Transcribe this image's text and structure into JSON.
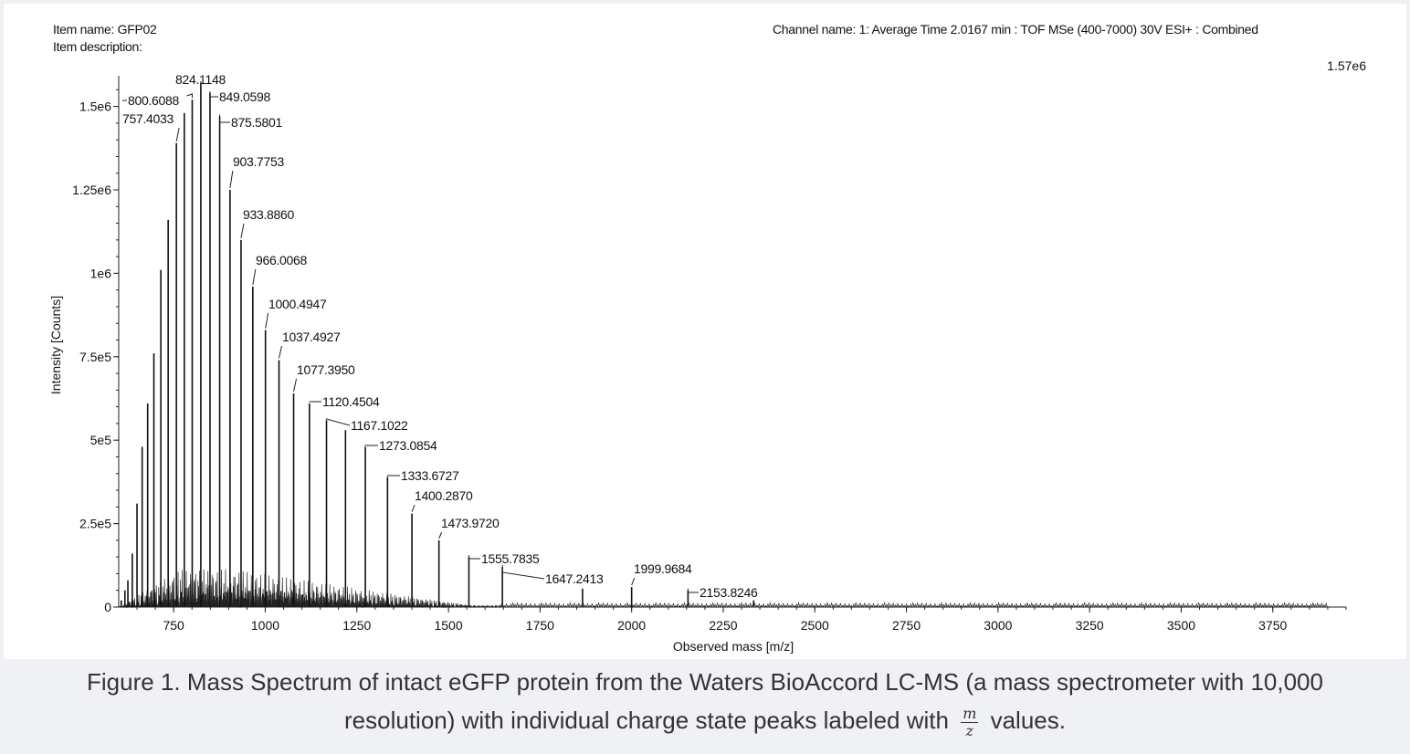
{
  "header": {
    "item_name": "Item name: GFP02",
    "item_description": "Item description:",
    "channel_name": "Channel name: 1: Average Time 2.0167 min : TOF MSe (400-7000) 30V ESI+ : Combined"
  },
  "caption": {
    "line1": "Figure 1. Mass Spectrum of intact eGFP protein from the Waters BioAccord LC-MS (a mass spectrometer with 10,000",
    "line2_before": "resolution) with individual charge state peaks labeled with",
    "frac_num": "m",
    "frac_den": "z",
    "line2_after": "values."
  },
  "chart_data": {
    "type": "line",
    "title": "",
    "xlabel": "Observed mass [m/z]",
    "ylabel": "Intensity [Counts]",
    "max_intensity_label": "1.57e6",
    "xlim": [
      600,
      3950
    ],
    "ylim": [
      0,
      1570000
    ],
    "x_ticks": [
      750,
      1000,
      1250,
      1500,
      1750,
      2000,
      2250,
      2500,
      2750,
      3000,
      3250,
      3500,
      3750
    ],
    "x_tick_labels": [
      "750",
      "1000",
      "1250",
      "1500",
      "1750",
      "2000",
      "2250",
      "2500",
      "2750",
      "3000",
      "3250",
      "3500",
      "3750"
    ],
    "y_ticks": [
      0,
      250000,
      500000,
      750000,
      1000000,
      1250000,
      1500000
    ],
    "y_tick_labels": [
      "0",
      "2.5e5",
      "5e5",
      "7.5e5",
      "1e6",
      "1.25e6",
      "1.5e6"
    ],
    "labeled_peaks": [
      {
        "label": "757.4033",
        "mz": 757.4,
        "intensity": 1390000
      },
      {
        "label": "800.6088",
        "mz": 800.6,
        "intensity": 1520000
      },
      {
        "label": "824.1148",
        "mz": 824.1,
        "intensity": 1570000
      },
      {
        "label": "849.0598",
        "mz": 849.1,
        "intensity": 1540000
      },
      {
        "label": "875.5801",
        "mz": 875.6,
        "intensity": 1470000
      },
      {
        "label": "903.7753",
        "mz": 903.8,
        "intensity": 1250000
      },
      {
        "label": "933.8860",
        "mz": 933.9,
        "intensity": 1100000
      },
      {
        "label": "966.0068",
        "mz": 966.0,
        "intensity": 960000
      },
      {
        "label": "1000.4947",
        "mz": 1000.5,
        "intensity": 830000
      },
      {
        "label": "1037.4927",
        "mz": 1037.5,
        "intensity": 740000
      },
      {
        "label": "1077.3950",
        "mz": 1077.4,
        "intensity": 640000
      },
      {
        "label": "1120.4504",
        "mz": 1120.5,
        "intensity": 610000
      },
      {
        "label": "1167.1022",
        "mz": 1167.1,
        "intensity": 560000
      },
      {
        "label": "1273.0854",
        "mz": 1273.1,
        "intensity": 480000
      },
      {
        "label": "1333.6727",
        "mz": 1333.7,
        "intensity": 390000
      },
      {
        "label": "1400.2870",
        "mz": 1400.3,
        "intensity": 280000
      },
      {
        "label": "1473.9720",
        "mz": 1474.0,
        "intensity": 200000
      },
      {
        "label": "1555.7835",
        "mz": 1555.8,
        "intensity": 150000
      },
      {
        "label": "1647.2413",
        "mz": 1647.2,
        "intensity": 120000
      },
      {
        "label": "1999.9684",
        "mz": 2000.0,
        "intensity": 60000
      },
      {
        "label": "2153.8246",
        "mz": 2153.8,
        "intensity": 50000
      }
    ],
    "unlabeled_peaks": [
      {
        "mz": 607,
        "intensity": 20000
      },
      {
        "mz": 617,
        "intensity": 50000
      },
      {
        "mz": 625,
        "intensity": 80000
      },
      {
        "mz": 637,
        "intensity": 160000
      },
      {
        "mz": 650,
        "intensity": 310000
      },
      {
        "mz": 664,
        "intensity": 480000
      },
      {
        "mz": 679,
        "intensity": 610000
      },
      {
        "mz": 696,
        "intensity": 760000
      },
      {
        "mz": 715,
        "intensity": 1010000
      },
      {
        "mz": 735,
        "intensity": 1160000
      },
      {
        "mz": 779,
        "intensity": 1480000
      },
      {
        "mz": 1219,
        "intensity": 530000
      },
      {
        "mz": 1866,
        "intensity": 55000
      },
      {
        "mz": 2333,
        "intensity": 20000
      }
    ]
  }
}
